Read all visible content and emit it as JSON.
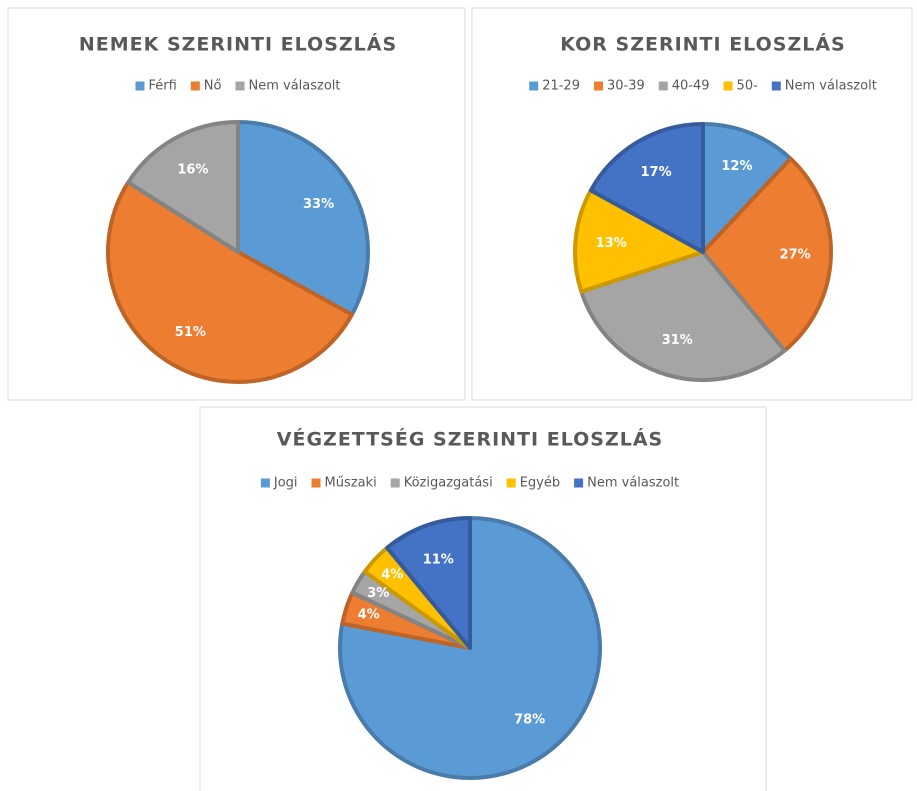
{
  "chart_data": [
    {
      "type": "pie",
      "title": "NEMEK SZERINTI ELOSZLÁS",
      "categories": [
        "Férfi",
        "Nő",
        "Nem válaszolt"
      ],
      "values": [
        33,
        51,
        16
      ],
      "value_labels": [
        "33%",
        "51%",
        "16%"
      ],
      "colors": [
        "#5b9bd5",
        "#ed7d31",
        "#a5a5a5"
      ]
    },
    {
      "type": "pie",
      "title": "KOR SZERINTI ELOSZLÁS",
      "categories": [
        "21-29",
        "30-39",
        "40-49",
        "50-",
        "Nem válaszolt"
      ],
      "values": [
        12,
        27,
        31,
        13,
        17
      ],
      "value_labels": [
        "12%",
        "27%",
        "31%",
        "13%",
        "17%"
      ],
      "colors": [
        "#5b9bd5",
        "#ed7d31",
        "#a5a5a5",
        "#ffc000",
        "#4472c4"
      ]
    },
    {
      "type": "pie",
      "title": "VÉGZETTSÉG SZERINTI ELOSZLÁS",
      "categories": [
        "Jogi",
        "Műszaki",
        "Közigazgatási",
        "Egyéb",
        "Nem válaszolt"
      ],
      "values": [
        78,
        4,
        3,
        4,
        11
      ],
      "value_labels": [
        "78%",
        "4%",
        "3%",
        "4%",
        "11%"
      ],
      "colors": [
        "#5b9bd5",
        "#ed7d31",
        "#a5a5a5",
        "#ffc000",
        "#4472c4"
      ]
    }
  ]
}
